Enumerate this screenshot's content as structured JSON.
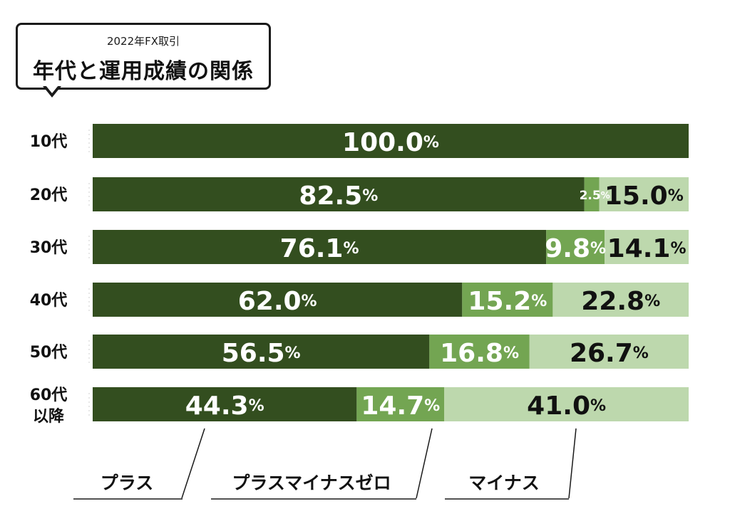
{
  "header": {
    "subtitle": "2022年FX取引",
    "title": "年代と運用成績の関係"
  },
  "colors": {
    "plus": "#334e1f",
    "zero": "#73a552",
    "minus": "#bdd8ad",
    "label_light": "#ffffff",
    "label_dark": "#111111"
  },
  "chart_data": {
    "type": "bar",
    "orientation": "horizontal",
    "stacked": true,
    "title": "年代と運用成績の関係",
    "subtitle": "2022年FX取引",
    "categories": [
      "10代",
      "20代",
      "30代",
      "40代",
      "50代",
      "60代以降"
    ],
    "category_lines": [
      [
        "10代"
      ],
      [
        "20代"
      ],
      [
        "30代"
      ],
      [
        "40代"
      ],
      [
        "50代"
      ],
      [
        "60代",
        "以降"
      ]
    ],
    "unit": "%",
    "xlim": [
      0,
      100
    ],
    "grid": false,
    "series": [
      {
        "name": "プラス",
        "values": [
          100.0,
          82.5,
          76.1,
          62.0,
          56.5,
          44.3
        ]
      },
      {
        "name": "プラスマイナスゼロ",
        "values": [
          0,
          2.5,
          9.8,
          15.2,
          16.8,
          14.7
        ]
      },
      {
        "name": "マイナス",
        "values": [
          0,
          15.0,
          14.1,
          22.8,
          26.7,
          41.0
        ]
      }
    ]
  }
}
